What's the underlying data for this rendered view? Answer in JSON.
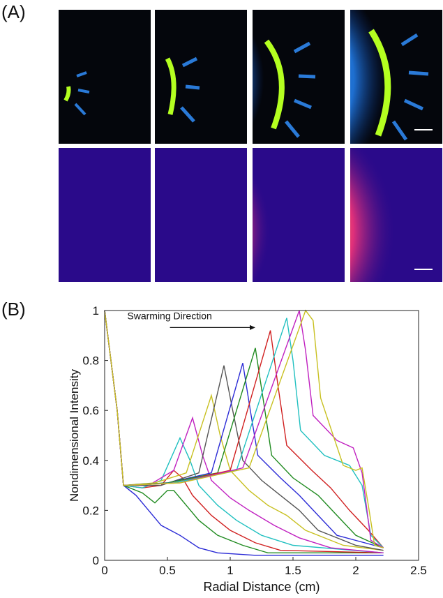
{
  "panels": {
    "a_label": "(A)",
    "b_label": "(B)"
  },
  "colors": {
    "green_top_row_bg": "#04060c",
    "fire_bottom_row_bg": "#2a0a8a"
  },
  "chart_data": {
    "type": "line",
    "xlabel": "Radial Distance (cm)",
    "ylabel": "Nondimensional Intensity",
    "xlim": [
      0,
      2.5
    ],
    "ylim": [
      0,
      1
    ],
    "xticks": [
      0,
      0.5,
      1,
      1.5,
      2,
      2.5
    ],
    "xtick_labels": [
      "0",
      "0.5",
      "1",
      "1.5",
      "2",
      "2.5"
    ],
    "yticks": [
      0,
      0.2,
      0.4,
      0.6,
      0.8,
      1
    ],
    "ytick_labels": [
      "0",
      "0.2",
      "0.4",
      "0.6",
      "0.8",
      "1"
    ],
    "grid": false,
    "annotation": {
      "text": "Swarming Direction",
      "arrow_from": [
        0.52,
        0.932
      ],
      "arrow_to": [
        1.2,
        0.932
      ]
    },
    "series": [
      {
        "color": "#2b2bd6",
        "points": [
          [
            0,
            1
          ],
          [
            0.1,
            0.6
          ],
          [
            0.15,
            0.3
          ],
          [
            0.25,
            0.26
          ],
          [
            0.35,
            0.2
          ],
          [
            0.45,
            0.14
          ],
          [
            0.6,
            0.1
          ],
          [
            0.75,
            0.05
          ],
          [
            0.9,
            0.03
          ],
          [
            1.2,
            0.02
          ],
          [
            2.22,
            0.02
          ]
        ]
      },
      {
        "color": "#1f8a1f",
        "points": [
          [
            0,
            1
          ],
          [
            0.1,
            0.6
          ],
          [
            0.15,
            0.3
          ],
          [
            0.3,
            0.27
          ],
          [
            0.4,
            0.23
          ],
          [
            0.5,
            0.28
          ],
          [
            0.55,
            0.28
          ],
          [
            0.65,
            0.22
          ],
          [
            0.75,
            0.16
          ],
          [
            0.9,
            0.1
          ],
          [
            1.1,
            0.06
          ],
          [
            1.3,
            0.03
          ],
          [
            2.22,
            0.03
          ]
        ]
      },
      {
        "color": "#d02020",
        "points": [
          [
            0,
            1
          ],
          [
            0.1,
            0.6
          ],
          [
            0.15,
            0.3
          ],
          [
            0.3,
            0.29
          ],
          [
            0.45,
            0.3
          ],
          [
            0.55,
            0.36
          ],
          [
            0.62,
            0.33
          ],
          [
            0.7,
            0.26
          ],
          [
            0.85,
            0.18
          ],
          [
            1.0,
            0.12
          ],
          [
            1.2,
            0.07
          ],
          [
            1.4,
            0.04
          ],
          [
            2.22,
            0.03
          ]
        ]
      },
      {
        "color": "#20c0c0",
        "points": [
          [
            0,
            1
          ],
          [
            0.1,
            0.6
          ],
          [
            0.15,
            0.3
          ],
          [
            0.3,
            0.29
          ],
          [
            0.45,
            0.32
          ],
          [
            0.6,
            0.49
          ],
          [
            0.68,
            0.4
          ],
          [
            0.75,
            0.3
          ],
          [
            0.9,
            0.22
          ],
          [
            1.05,
            0.16
          ],
          [
            1.25,
            0.1
          ],
          [
            1.5,
            0.06
          ],
          [
            2.22,
            0.03
          ]
        ]
      },
      {
        "color": "#c020c0",
        "points": [
          [
            0,
            1
          ],
          [
            0.1,
            0.6
          ],
          [
            0.15,
            0.3
          ],
          [
            0.35,
            0.3
          ],
          [
            0.55,
            0.36
          ],
          [
            0.7,
            0.57
          ],
          [
            0.78,
            0.42
          ],
          [
            0.85,
            0.32
          ],
          [
            1.0,
            0.25
          ],
          [
            1.15,
            0.2
          ],
          [
            1.35,
            0.14
          ],
          [
            1.55,
            0.09
          ],
          [
            1.8,
            0.05
          ],
          [
            2.22,
            0.03
          ]
        ]
      },
      {
        "color": "#c8c020",
        "points": [
          [
            0,
            1
          ],
          [
            0.1,
            0.6
          ],
          [
            0.15,
            0.3
          ],
          [
            0.4,
            0.31
          ],
          [
            0.65,
            0.35
          ],
          [
            0.85,
            0.66
          ],
          [
            0.92,
            0.5
          ],
          [
            1.0,
            0.36
          ],
          [
            1.15,
            0.28
          ],
          [
            1.3,
            0.22
          ],
          [
            1.45,
            0.18
          ],
          [
            1.6,
            0.12
          ],
          [
            1.9,
            0.06
          ],
          [
            2.22,
            0.04
          ]
        ]
      },
      {
        "color": "#555555",
        "points": [
          [
            0,
            1
          ],
          [
            0.1,
            0.6
          ],
          [
            0.15,
            0.3
          ],
          [
            0.45,
            0.3
          ],
          [
            0.75,
            0.35
          ],
          [
            0.95,
            0.78
          ],
          [
            1.02,
            0.6
          ],
          [
            1.1,
            0.4
          ],
          [
            1.25,
            0.32
          ],
          [
            1.4,
            0.26
          ],
          [
            1.55,
            0.2
          ],
          [
            1.7,
            0.12
          ],
          [
            2.0,
            0.06
          ],
          [
            2.22,
            0.04
          ]
        ]
      },
      {
        "color": "#2b2bd6",
        "points": [
          [
            0,
            1
          ],
          [
            0.1,
            0.6
          ],
          [
            0.15,
            0.3
          ],
          [
            0.5,
            0.31
          ],
          [
            0.85,
            0.35
          ],
          [
            1.1,
            0.79
          ],
          [
            1.16,
            0.6
          ],
          [
            1.22,
            0.42
          ],
          [
            1.4,
            0.33
          ],
          [
            1.55,
            0.26
          ],
          [
            1.7,
            0.18
          ],
          [
            1.85,
            0.1
          ],
          [
            2.22,
            0.05
          ]
        ]
      },
      {
        "color": "#1f8a1f",
        "points": [
          [
            0,
            1
          ],
          [
            0.1,
            0.6
          ],
          [
            0.15,
            0.3
          ],
          [
            0.5,
            0.31
          ],
          [
            0.9,
            0.35
          ],
          [
            1.2,
            0.85
          ],
          [
            1.27,
            0.62
          ],
          [
            1.33,
            0.42
          ],
          [
            1.5,
            0.33
          ],
          [
            1.7,
            0.26
          ],
          [
            1.85,
            0.18
          ],
          [
            2.0,
            0.1
          ],
          [
            2.22,
            0.05
          ]
        ]
      },
      {
        "color": "#d02020",
        "points": [
          [
            0,
            1
          ],
          [
            0.1,
            0.6
          ],
          [
            0.15,
            0.3
          ],
          [
            0.55,
            0.31
          ],
          [
            1.0,
            0.36
          ],
          [
            1.32,
            0.92
          ],
          [
            1.38,
            0.7
          ],
          [
            1.45,
            0.46
          ],
          [
            1.65,
            0.36
          ],
          [
            1.8,
            0.29
          ],
          [
            1.95,
            0.2
          ],
          [
            2.1,
            0.12
          ],
          [
            2.22,
            0.05
          ]
        ]
      },
      {
        "color": "#20c0c0",
        "points": [
          [
            0,
            1
          ],
          [
            0.1,
            0.6
          ],
          [
            0.15,
            0.3
          ],
          [
            0.55,
            0.31
          ],
          [
            1.05,
            0.36
          ],
          [
            1.45,
            0.97
          ],
          [
            1.5,
            0.8
          ],
          [
            1.56,
            0.52
          ],
          [
            1.75,
            0.42
          ],
          [
            1.95,
            0.38
          ],
          [
            2.05,
            0.3
          ],
          [
            2.12,
            0.1
          ],
          [
            2.22,
            0.05
          ]
        ]
      },
      {
        "color": "#c020c0",
        "points": [
          [
            0,
            1
          ],
          [
            0.1,
            0.6
          ],
          [
            0.15,
            0.3
          ],
          [
            0.6,
            0.31
          ],
          [
            1.1,
            0.37
          ],
          [
            1.55,
            1.0
          ],
          [
            1.6,
            0.84
          ],
          [
            1.66,
            0.58
          ],
          [
            1.85,
            0.48
          ],
          [
            1.98,
            0.45
          ],
          [
            2.05,
            0.35
          ],
          [
            2.12,
            0.08
          ],
          [
            2.22,
            0.05
          ]
        ]
      },
      {
        "color": "#c8c020",
        "points": [
          [
            0,
            1
          ],
          [
            0.1,
            0.6
          ],
          [
            0.15,
            0.3
          ],
          [
            0.6,
            0.31
          ],
          [
            1.15,
            0.37
          ],
          [
            1.6,
            1.0
          ],
          [
            1.66,
            0.96
          ],
          [
            1.72,
            0.65
          ],
          [
            1.9,
            0.38
          ],
          [
            2.0,
            0.36
          ],
          [
            2.05,
            0.37
          ],
          [
            2.1,
            0.22
          ],
          [
            2.15,
            0.06
          ],
          [
            2.22,
            0.05
          ]
        ]
      }
    ]
  }
}
